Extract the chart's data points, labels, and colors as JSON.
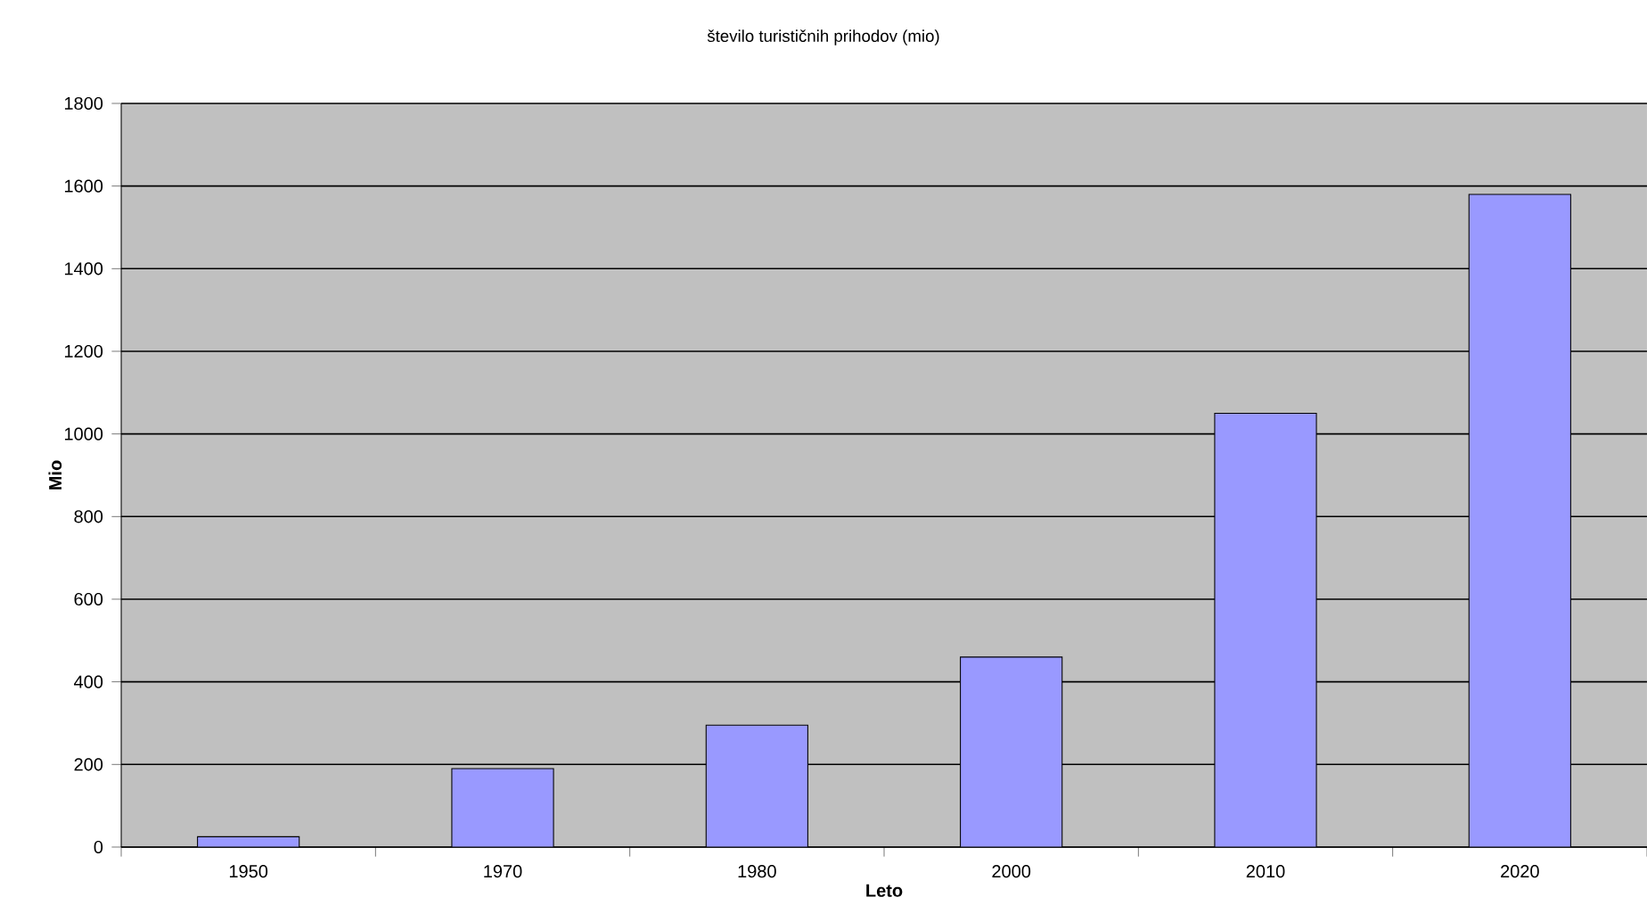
{
  "chart_data": {
    "type": "bar",
    "title": "število turističnih prihodov (mio)",
    "xlabel": "Leto",
    "ylabel": "Mio",
    "categories": [
      "1950",
      "1970",
      "1980",
      "2000",
      "2010",
      "2020"
    ],
    "values": [
      25,
      190,
      295,
      460,
      1050,
      1580
    ],
    "color": "#9999ff",
    "ylim": [
      0,
      1800
    ],
    "yticks": [
      0,
      200,
      400,
      600,
      800,
      1000,
      1200,
      1400,
      1600,
      1800
    ],
    "grid": "y"
  }
}
